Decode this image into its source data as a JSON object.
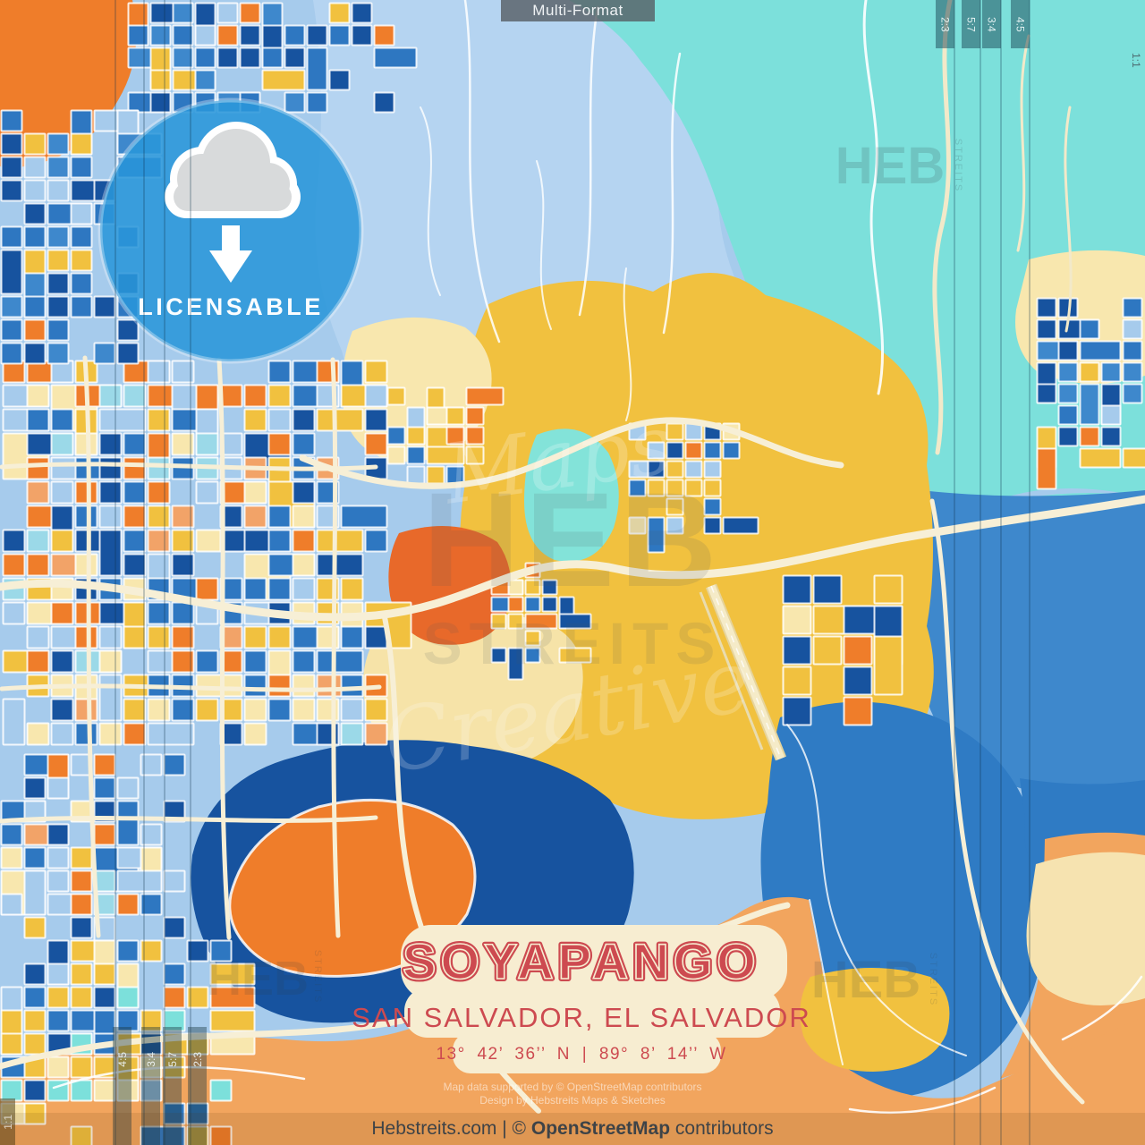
{
  "format_badge": {
    "label": "Multi-Format"
  },
  "license_badge": {
    "label": "LICENSABLE"
  },
  "title_block": {
    "city": "SOYAPANGO",
    "region": "SAN SALVADOR, EL SALVADOR",
    "coordinates": "13° 42’ 36’’ N | 89° 8’ 14’’ W"
  },
  "crop_guides": {
    "top_right": [
      "2:3",
      "5:7",
      "3:4",
      "4:5"
    ],
    "right_edge": "1:1",
    "bottom_left": [
      "4:5",
      "3:4",
      "5:7",
      "2:3"
    ],
    "left_edge": "1:1"
  },
  "watermarks": {
    "center": {
      "script_top": "Maps",
      "block_top": "HEB",
      "block_mid": "STREITS",
      "script_bottom": "Creative"
    },
    "top_right": {
      "main": "HEB",
      "side": "STREITS"
    },
    "bottom_right": {
      "main": "HEB",
      "side": "STREITS"
    },
    "bottom_left": {
      "main": "HEB",
      "side": "STREITS"
    }
  },
  "attribution": {
    "line1": "Map data supported by © OpenStreetMap contributors",
    "line2": "Design by Hebstreits Maps & Sketches"
  },
  "footer": {
    "site": "Hebstreits.com",
    "mid": " | © ",
    "osm": "OpenStreetMap",
    "tail": " contributors"
  },
  "colors": {
    "accent_blue": "#2E9BDC",
    "title_red": "#CD4A50",
    "plate_cream": "#F7EDD1",
    "map_cyan": "#7CE0DB",
    "map_light_blue": "#A6CBEC",
    "map_blue": "#2E77C1",
    "map_navy": "#17539F",
    "map_orange": "#EF7D2A",
    "map_terrain_orange": "#F2A55E",
    "map_gold": "#F1C13F",
    "map_pale_yellow": "#F8E7AE",
    "road_cream": "#F7EFD6"
  }
}
